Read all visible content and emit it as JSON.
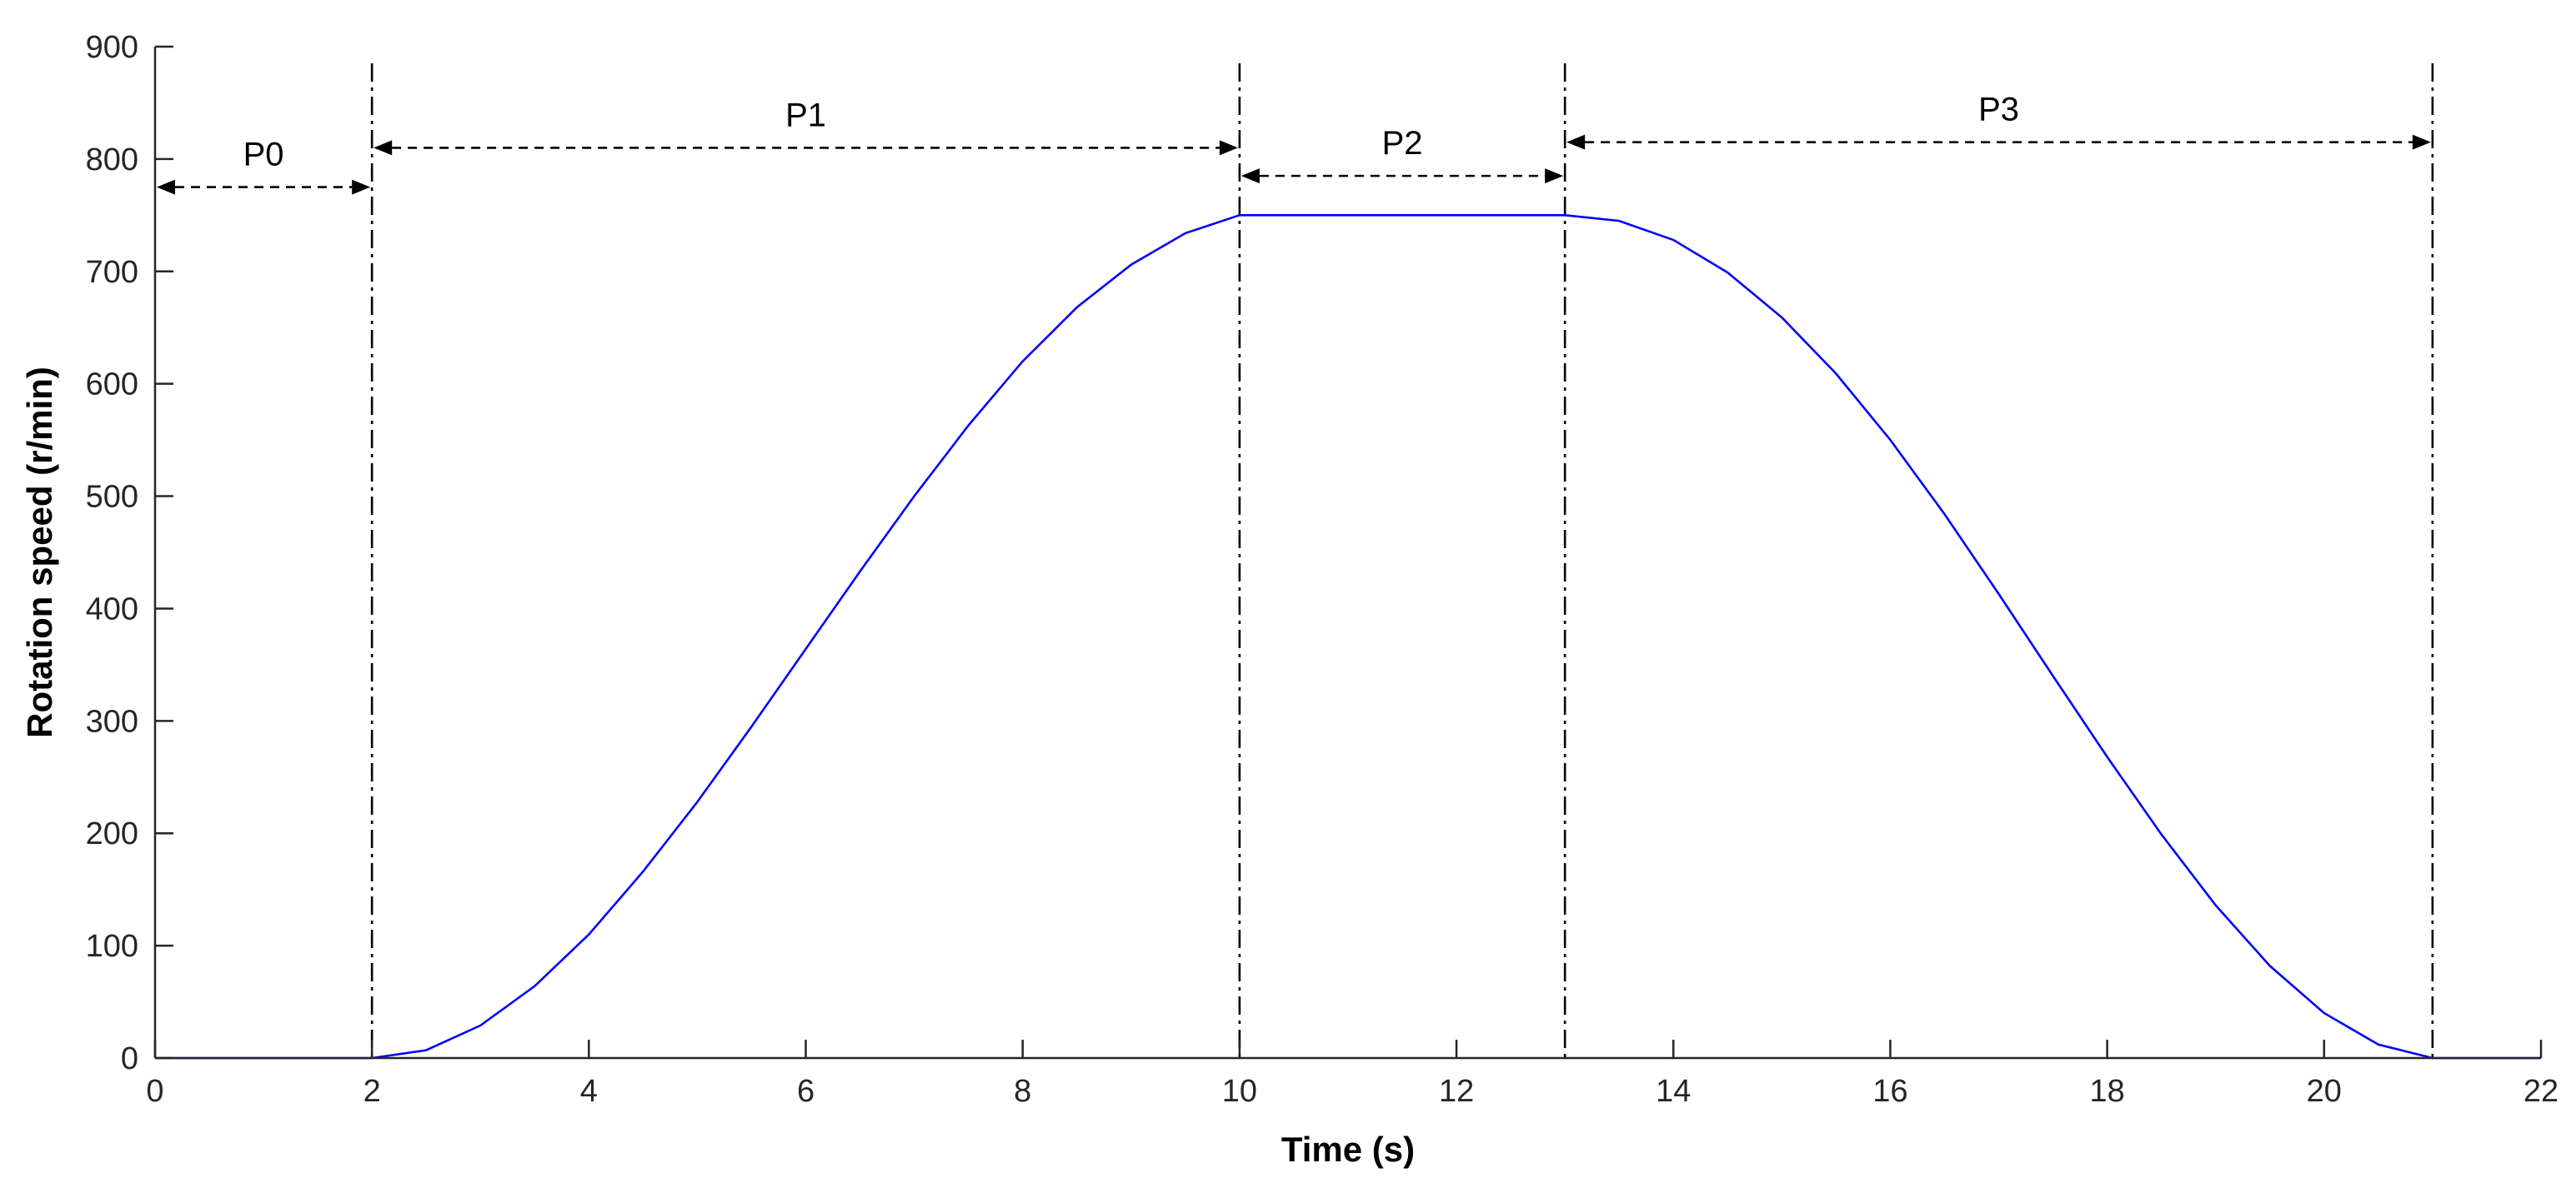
{
  "chart_data": {
    "type": "line",
    "xlabel": "Time (s)",
    "ylabel": "Rotation speed (r/min)",
    "xlim": [
      0,
      22
    ],
    "ylim": [
      0,
      900
    ],
    "xticks": [
      0,
      2,
      4,
      6,
      8,
      10,
      12,
      14,
      16,
      18,
      20,
      22
    ],
    "yticks": [
      0,
      100,
      200,
      300,
      400,
      500,
      600,
      700,
      800,
      900
    ],
    "grid": false,
    "series": [
      {
        "color": "#0000ff",
        "x": [
          0,
          2,
          2.5,
          3,
          3.5,
          4,
          4.5,
          5,
          5.5,
          6,
          6.5,
          7,
          7.5,
          8,
          8.5,
          9,
          9.5,
          10,
          11,
          12,
          13,
          13.5,
          14,
          14.5,
          15,
          15.5,
          16,
          16.5,
          17,
          17.5,
          18,
          18.5,
          19,
          19.5,
          20,
          20.5,
          21,
          22
        ],
        "y": [
          0,
          0,
          7,
          29,
          64,
          110,
          166,
          228,
          295,
          364,
          433,
          500,
          563,
          620,
          668,
          706,
          734,
          750,
          750,
          750,
          750,
          745,
          728,
          699,
          659,
          609,
          550,
          484,
          413,
          340,
          268,
          199,
          136,
          82,
          40,
          12,
          0,
          0
        ]
      }
    ],
    "phase_boundaries": [
      2,
      10,
      13,
      21
    ],
    "phases": [
      {
        "label": "P0",
        "x_start": 0,
        "x_end": 2,
        "y": 775
      },
      {
        "label": "P1",
        "x_start": 2,
        "x_end": 10,
        "y": 810
      },
      {
        "label": "P2",
        "x_start": 10,
        "x_end": 13,
        "y": 785
      },
      {
        "label": "P3",
        "x_start": 13,
        "x_end": 21,
        "y": 815
      }
    ],
    "colors": {
      "axis": "#262626",
      "series": "#0000ff",
      "boundary": "#000000"
    }
  }
}
